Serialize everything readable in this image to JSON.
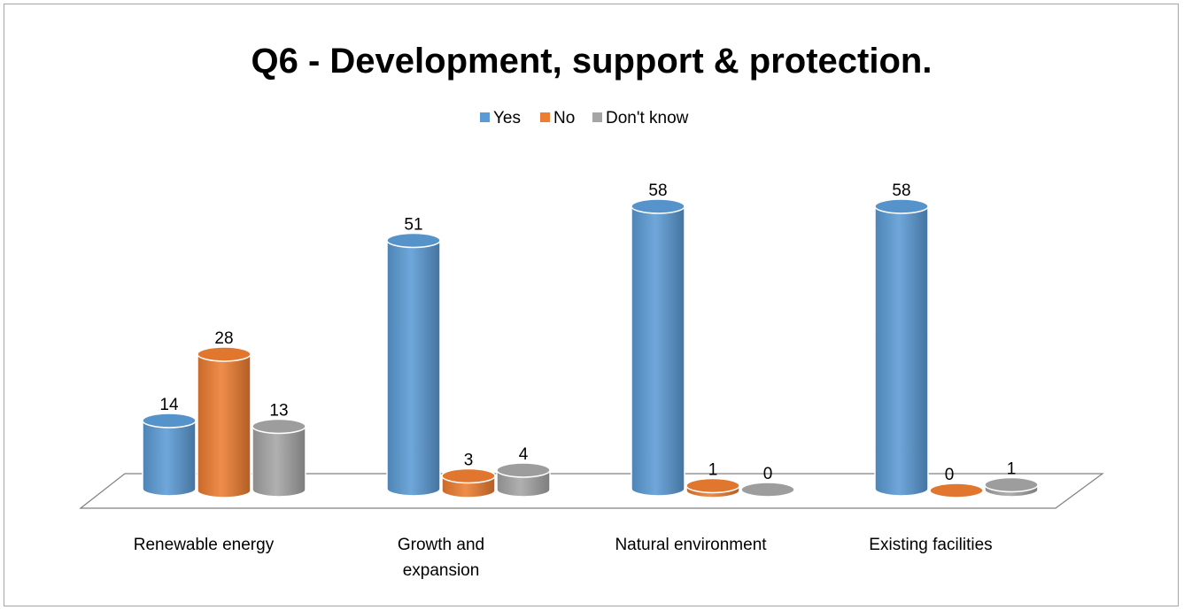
{
  "chart_data": {
    "type": "bar",
    "title": "Q6 - Development, support & protection.",
    "categories": [
      "Renewable energy",
      "Growth and expansion",
      "Natural environment",
      "Existing facilities"
    ],
    "category_lines": [
      [
        "Renewable energy"
      ],
      [
        "Growth and",
        "expansion"
      ],
      [
        "Natural environment"
      ],
      [
        "Existing facilities"
      ]
    ],
    "series": [
      {
        "name": "Yes",
        "values": [
          14,
          51,
          58,
          58
        ],
        "color": "#5b9bd5"
      },
      {
        "name": "No",
        "values": [
          28,
          3,
          1,
          0
        ],
        "color": "#ed7d31"
      },
      {
        "name": "Don't know",
        "values": [
          13,
          4,
          0,
          1
        ],
        "color": "#a5a5a5"
      }
    ],
    "legend_position": "top",
    "data_labels": true,
    "grid": false,
    "style": "3d-cylinder"
  }
}
